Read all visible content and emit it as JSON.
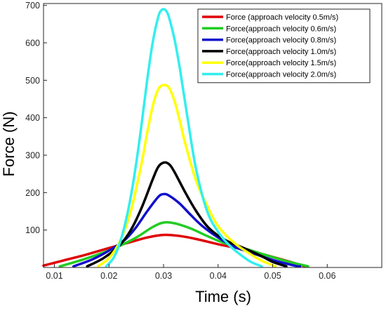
{
  "chart_data": {
    "type": "line",
    "xlabel": "Time (s)",
    "ylabel": "Force  (N)",
    "xlim": [
      0.008,
      0.07
    ],
    "ylim": [
      0,
      705
    ],
    "xticks": [
      0.01,
      0.02,
      0.03,
      0.04,
      0.05,
      0.06
    ],
    "xtick_labels": [
      "0.01",
      "0.02",
      "0.03",
      "0.04",
      "0.05",
      "0.06"
    ],
    "yticks": [
      100,
      200,
      300,
      400,
      500,
      600,
      700
    ],
    "ytick_labels": [
      "100",
      "200",
      "300",
      "400",
      "500",
      "600",
      "700"
    ],
    "grid": false,
    "legend_position": "top-right",
    "series": [
      {
        "name": "Force (approach velocity 0.5m/s)",
        "color": "#e00000",
        "x": [
          0.008,
          0.012,
          0.016,
          0.02,
          0.024,
          0.027,
          0.03,
          0.033,
          0.036,
          0.04,
          0.044,
          0.048,
          0.052,
          0.056
        ],
        "y": [
          5,
          20,
          35,
          52,
          68,
          80,
          87,
          84,
          76,
          62,
          50,
          36,
          20,
          3
        ]
      },
      {
        "name": "Force(approach velocity 0.6m/s)",
        "color": "#22cc22",
        "x": [
          0.011,
          0.015,
          0.019,
          0.022,
          0.025,
          0.028,
          0.03,
          0.032,
          0.035,
          0.038,
          0.041,
          0.045,
          0.049,
          0.053,
          0.0565
        ],
        "y": [
          3,
          20,
          40,
          58,
          80,
          108,
          120,
          118,
          104,
          84,
          66,
          50,
          32,
          15,
          3
        ]
      },
      {
        "name": "Force(approach velocity 0.8m/s)",
        "color": "#1010cc",
        "x": [
          0.0135,
          0.017,
          0.02,
          0.023,
          0.025,
          0.027,
          0.029,
          0.03,
          0.031,
          0.033,
          0.035,
          0.037,
          0.04,
          0.043,
          0.046,
          0.05,
          0.054,
          0.055
        ],
        "y": [
          3,
          22,
          45,
          75,
          108,
          150,
          188,
          196,
          192,
          170,
          140,
          112,
          80,
          55,
          40,
          20,
          5,
          3
        ]
      },
      {
        "name": "Force(approach velocity 1.0m/s)",
        "color": "#000000",
        "x": [
          0.016,
          0.019,
          0.022,
          0.024,
          0.026,
          0.028,
          0.029,
          0.03,
          0.031,
          0.032,
          0.034,
          0.036,
          0.038,
          0.04,
          0.042,
          0.045,
          0.048,
          0.05,
          0.0525
        ],
        "y": [
          3,
          25,
          60,
          100,
          160,
          235,
          268,
          280,
          276,
          255,
          200,
          150,
          110,
          85,
          68,
          50,
          30,
          15,
          3
        ]
      },
      {
        "name": "Force(approach velocity 1.5m/s)",
        "color": "#ffff00",
        "x": [
          0.018,
          0.02,
          0.022,
          0.024,
          0.026,
          0.027,
          0.028,
          0.029,
          0.03,
          0.031,
          0.032,
          0.033,
          0.034,
          0.036,
          0.038,
          0.04,
          0.043,
          0.046,
          0.048,
          0.0505
        ],
        "y": [
          3,
          25,
          70,
          150,
          280,
          360,
          430,
          475,
          487,
          480,
          445,
          390,
          330,
          230,
          165,
          110,
          65,
          35,
          18,
          3
        ]
      },
      {
        "name": "Force(approach velocity 2.0m/s)",
        "color": "#33eeee",
        "x": [
          0.0195,
          0.021,
          0.0225,
          0.024,
          0.0255,
          0.027,
          0.028,
          0.029,
          0.0295,
          0.03,
          0.0305,
          0.031,
          0.032,
          0.033,
          0.0345,
          0.036,
          0.038,
          0.04,
          0.042,
          0.044,
          0.046,
          0.048
        ],
        "y": [
          3,
          30,
          90,
          190,
          330,
          500,
          600,
          668,
          685,
          690,
          685,
          668,
          610,
          530,
          390,
          260,
          150,
          95,
          60,
          35,
          15,
          3
        ]
      }
    ]
  }
}
